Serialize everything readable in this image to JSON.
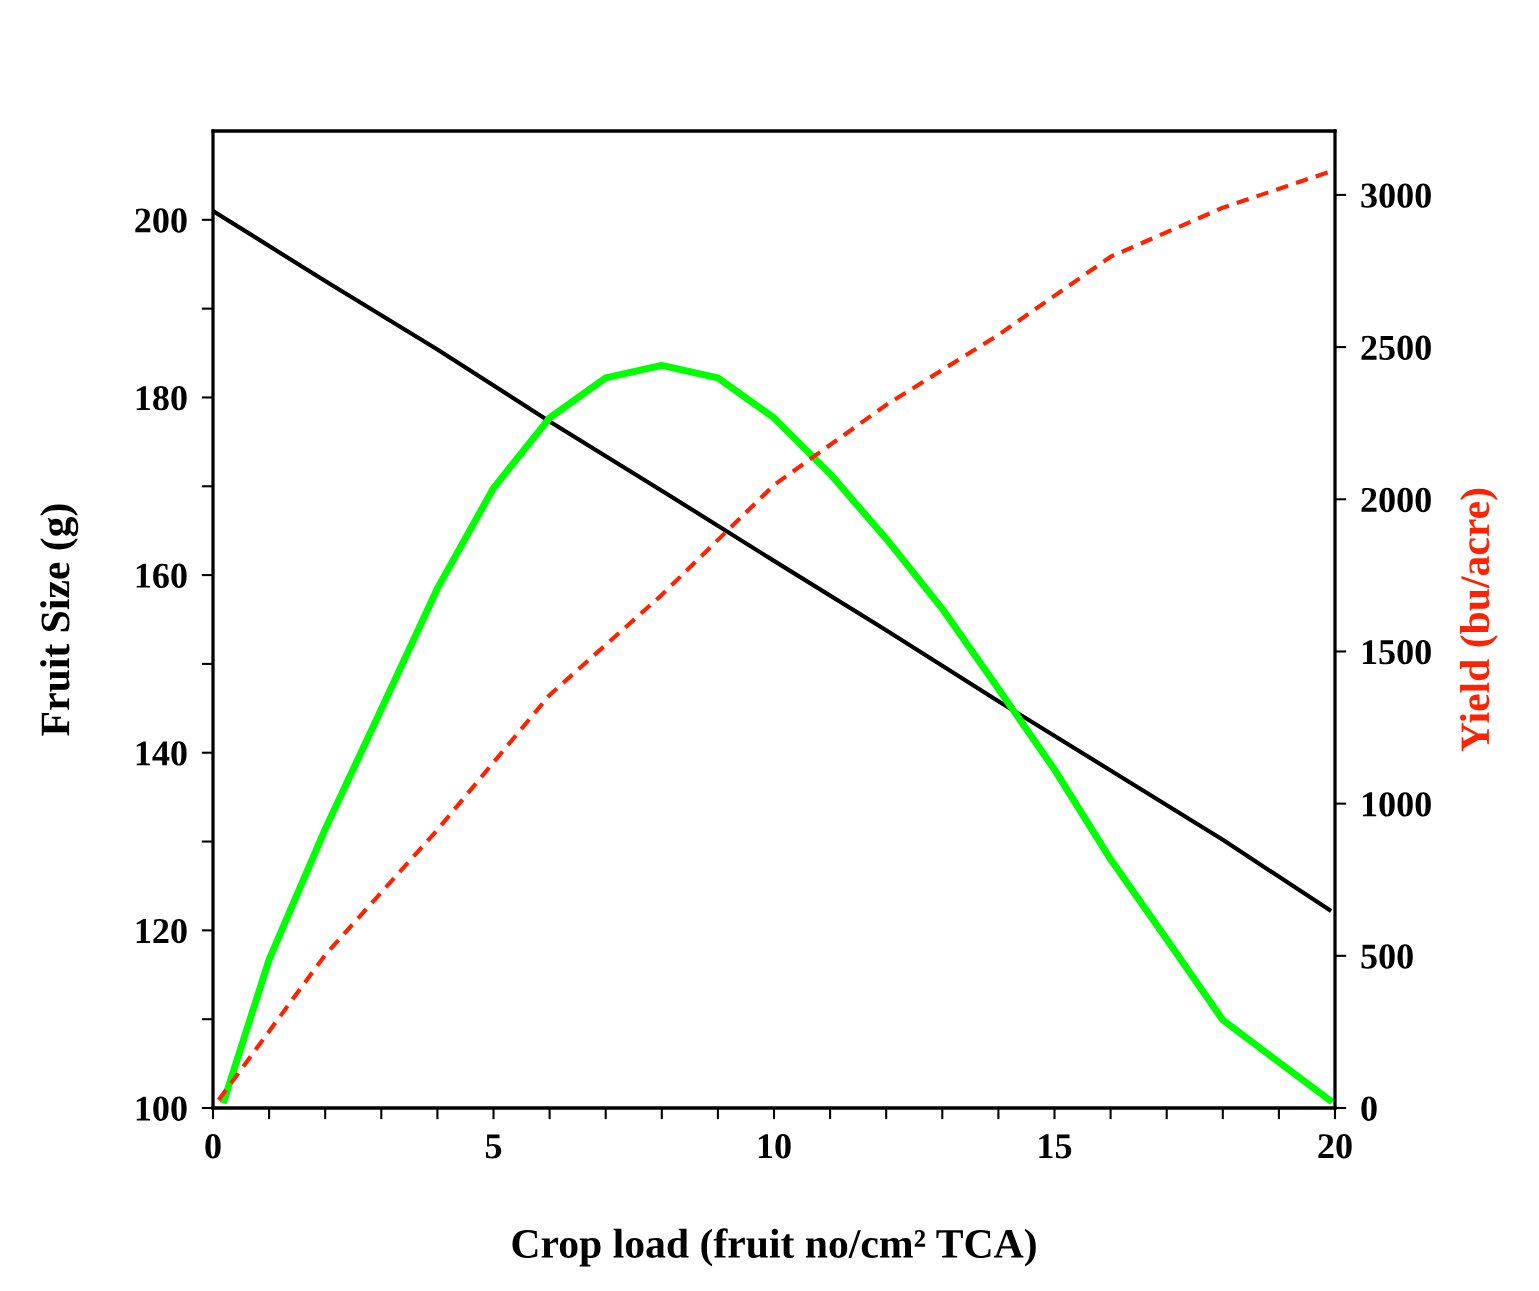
{
  "chart_data": {
    "type": "line",
    "xlabel": "Crop load (fruit no/cm² TCA)",
    "ylabel": "Fruit Size (g)",
    "y2label": "Yield (bu/acre)",
    "xlim": [
      0,
      20
    ],
    "xticks": [
      0,
      {
        "value": 1,
        "label": null
      },
      {
        "value": 2,
        "label": null
      },
      {
        "value": 3,
        "label": null
      },
      {
        "value": 4,
        "label": null
      },
      5,
      {
        "value": 6,
        "label": null
      },
      {
        "value": 7,
        "label": null
      },
      {
        "value": 8,
        "label": null
      },
      {
        "value": 9,
        "label": null
      },
      10,
      {
        "value": 11,
        "label": null
      },
      {
        "value": 12,
        "label": null
      },
      {
        "value": 13,
        "label": null
      },
      {
        "value": 14,
        "label": null
      },
      15,
      {
        "value": 16,
        "label": null
      },
      {
        "value": 17,
        "label": null
      },
      {
        "value": 18,
        "label": null
      },
      {
        "value": 19,
        "label": null
      },
      20
    ],
    "ylim": [
      100,
      210
    ],
    "yticks": [
      100,
      {
        "value": 110,
        "label": null
      },
      120,
      {
        "value": 130,
        "label": null
      },
      140,
      {
        "value": 150,
        "label": null
      },
      160,
      {
        "value": 170,
        "label": null
      },
      180,
      {
        "value": 190,
        "label": null
      },
      200
    ],
    "y2lim": [
      0,
      3210
    ],
    "y2ticks": [
      0,
      500,
      1000,
      1500,
      2000,
      2500,
      3000
    ],
    "grid": false,
    "legend": false,
    "series": [
      {
        "color": "#000000",
        "line_style": "solid",
        "x": [
          0,
          2,
          4,
          6,
          8,
          10,
          12,
          14,
          16,
          18,
          19.9
        ],
        "values": [
          201,
          193.1,
          185.4,
          177.3,
          169.5,
          161.6,
          153.8,
          145.8,
          138,
          130.2,
          122.3
        ]
      },
      {
        "color": "#00ff00",
        "line_style": "solid",
        "x": [
          0.2,
          1,
          2,
          3,
          4,
          5,
          6,
          7,
          8,
          9,
          10,
          11,
          12,
          13,
          14,
          15,
          16,
          17,
          18,
          19.9
        ],
        "values": [
          100.9,
          116.7,
          131.4,
          144.9,
          158.5,
          169.8,
          177.7,
          182.2,
          183.6,
          182.2,
          177.7,
          171.4,
          164.1,
          156.2,
          147.2,
          138.1,
          128,
          119,
          109.9,
          100.9
        ]
      },
      {
        "color": "#ff2200",
        "line_style": "dashed",
        "axis": "y2",
        "x": [
          0.1,
          2,
          4,
          6,
          8,
          10,
          12,
          14,
          16,
          18,
          20
        ],
        "values": [
          26,
          503,
          914,
          1357,
          1686,
          2047,
          2310,
          2540,
          2797,
          2958,
          3082
        ]
      }
    ]
  }
}
